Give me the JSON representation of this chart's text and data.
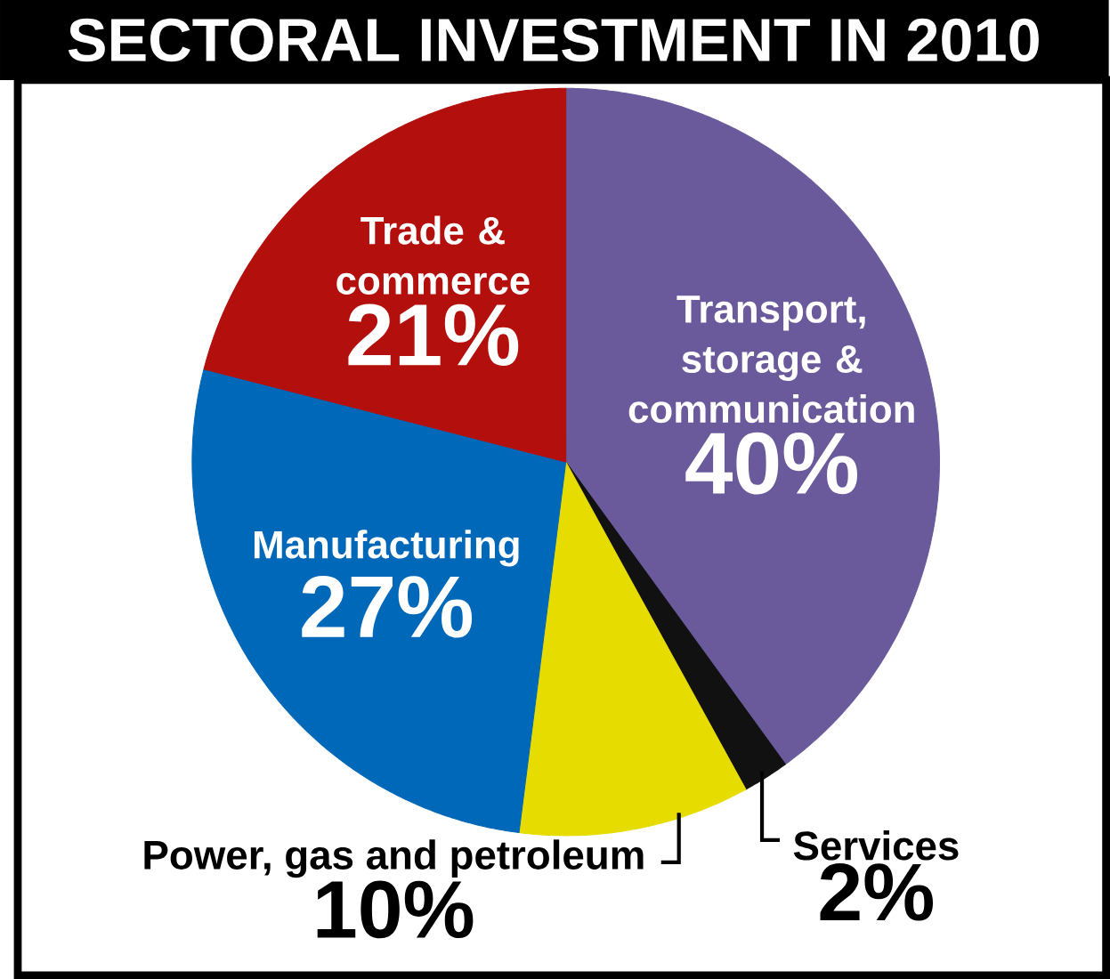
{
  "chart_data": {
    "type": "pie",
    "title": "SECTORAL INVESTMENT IN 2010",
    "categories": [
      "Transport, storage & communication",
      "Services",
      "Power, gas and petroleum",
      "Manufacturing",
      "Trade & commerce"
    ],
    "values": [
      40,
      2,
      10,
      27,
      21
    ],
    "value_labels": [
      "40%",
      "2%",
      "10%",
      "27%",
      "21%"
    ],
    "colors": [
      "#6a5a9c",
      "#111111",
      "#e6dc00",
      "#0068b8",
      "#b30f0c"
    ]
  }
}
